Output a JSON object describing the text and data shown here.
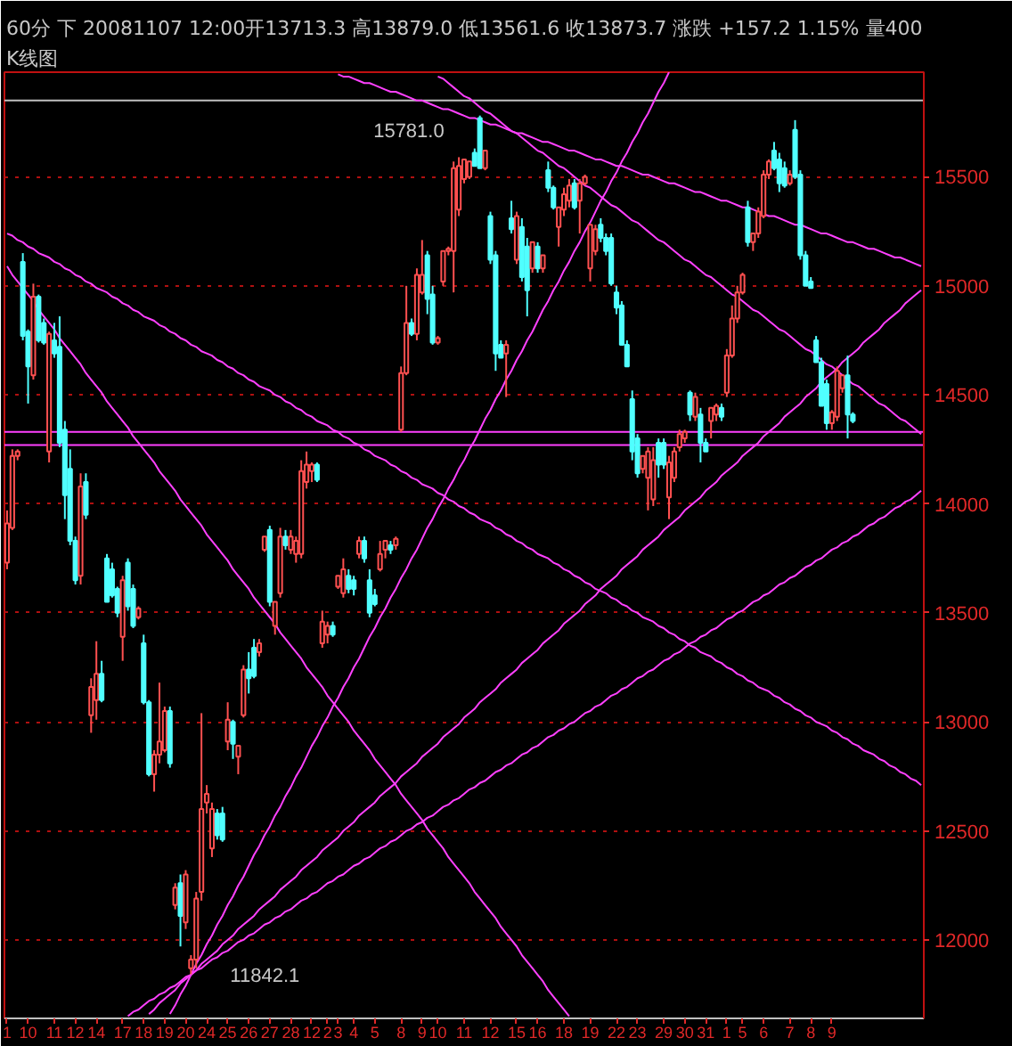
{
  "chart_data": {
    "type": "candlestick",
    "title": "60分 下 20081107 12:00开13713.3 高13879.0 低13561.6 收13873.7 涨跌 +157.2 1.15% 量400",
    "subtitle": "K线图",
    "categories": [
      "1",
      null,
      null,
      null,
      "10",
      null,
      null,
      null,
      null,
      "11",
      null,
      null,
      null,
      "12",
      null,
      null,
      null,
      "14",
      null,
      null,
      null,
      null,
      "17",
      null,
      null,
      null,
      "18",
      null,
      null,
      null,
      "19",
      null,
      null,
      null,
      "20",
      null,
      null,
      null,
      "24",
      null,
      null,
      null,
      "25",
      null,
      null,
      null,
      "26",
      null,
      null,
      null,
      "27",
      null,
      null,
      null,
      "28",
      null,
      null,
      null,
      "12",
      null,
      null,
      "2",
      null,
      "3",
      null,
      null,
      "4",
      null,
      null,
      null,
      "5",
      null,
      null,
      null,
      null,
      "8",
      null,
      null,
      null,
      "9",
      null,
      null,
      "10",
      null,
      null,
      null,
      null,
      "11",
      null,
      null,
      null,
      null,
      "12",
      null,
      null,
      null,
      null,
      "15",
      null,
      null,
      null,
      "16",
      null,
      null,
      null,
      null,
      "18",
      null,
      null,
      null,
      null,
      "19",
      null,
      null,
      null,
      null,
      "22",
      null,
      null,
      null,
      "23",
      null,
      null,
      null,
      null,
      "29",
      null,
      null,
      null,
      "30",
      null,
      null,
      null,
      "31",
      null,
      null,
      null,
      "1",
      null,
      null,
      "5",
      null,
      null,
      null,
      "6",
      null,
      null,
      null,
      null,
      "7",
      null,
      null,
      null,
      "8",
      null,
      null,
      null,
      "9",
      null,
      null,
      null,
      null,
      null,
      null,
      null,
      null,
      null,
      null,
      null,
      null,
      null,
      null,
      null,
      null,
      null
    ],
    "ohlc": [
      [
        13730,
        13970,
        13700,
        13910
      ],
      [
        13890,
        14250,
        13880,
        14220
      ],
      [
        14220,
        14250,
        14200,
        14240
      ],
      [
        15110,
        15150,
        14750,
        14770
      ],
      [
        14790,
        14800,
        14460,
        14630
      ],
      [
        14590,
        15010,
        14570,
        14950
      ],
      [
        14950,
        14960,
        14740,
        14750
      ],
      [
        14830,
        14850,
        14730,
        14740
      ],
      [
        14240,
        14790,
        14190,
        14780
      ],
      [
        14750,
        14830,
        14670,
        14690
      ],
      [
        14720,
        14860,
        14260,
        14280
      ],
      [
        14340,
        14380,
        13930,
        14040
      ],
      [
        14160,
        14250,
        13810,
        13830
      ],
      [
        13830,
        13850,
        13630,
        13650
      ],
      [
        13670,
        14140,
        13630,
        14080
      ],
      [
        14100,
        14140,
        13930,
        13950
      ],
      [
        13030,
        13200,
        12950,
        13160
      ],
      [
        13100,
        13370,
        13010,
        13220
      ],
      [
        13220,
        13280,
        13090,
        13100
      ],
      [
        13750,
        13770,
        13550,
        13550
      ],
      [
        13700,
        13730,
        13570,
        13580
      ],
      [
        13610,
        13620,
        13480,
        13500
      ],
      [
        13390,
        13670,
        13280,
        13650
      ],
      [
        13730,
        13750,
        13510,
        13530
      ],
      [
        13610,
        13630,
        13430,
        13440
      ],
      [
        13480,
        13530,
        13470,
        13520
      ],
      [
        13360,
        13400,
        13080,
        13090
      ],
      [
        13090,
        13100,
        12750,
        12760
      ],
      [
        12760,
        12870,
        12680,
        12850
      ],
      [
        12850,
        13180,
        12810,
        12910
      ],
      [
        12870,
        13070,
        12860,
        13050
      ],
      [
        13050,
        13070,
        12790,
        12810
      ],
      [
        12160,
        12260,
        12140,
        12240
      ],
      [
        12260,
        12300,
        11970,
        12110
      ],
      [
        12080,
        12320,
        12050,
        12300
      ],
      [
        11870,
        11930,
        11842.1,
        11910
      ],
      [
        11910,
        12220,
        11870,
        12190
      ],
      [
        12220,
        13040,
        12180,
        12600
      ],
      [
        12630,
        12710,
        12580,
        12670
      ],
      [
        12420,
        12630,
        12380,
        12600
      ],
      [
        12580,
        12600,
        12460,
        12480
      ],
      [
        12580,
        12610,
        12450,
        12460
      ],
      [
        12910,
        13090,
        12870,
        13010
      ],
      [
        13000,
        13010,
        12830,
        12900
      ],
      [
        12840,
        12890,
        12760,
        12890
      ],
      [
        13030,
        13260,
        13020,
        13240
      ],
      [
        13240,
        13320,
        13130,
        13200
      ],
      [
        13340,
        13380,
        13200,
        13210
      ],
      [
        13320,
        13380,
        13300,
        13360
      ],
      [
        13790,
        13850,
        13780,
        13850
      ],
      [
        13880,
        13900,
        13530,
        13550
      ],
      [
        13440,
        13550,
        13400,
        13550
      ],
      [
        13590,
        13890,
        13570,
        13850
      ],
      [
        13850,
        13880,
        13790,
        13810
      ],
      [
        13790,
        13880,
        13770,
        13850
      ],
      [
        13770,
        13850,
        13730,
        13830
      ],
      [
        13770,
        14200,
        13750,
        14150
      ],
      [
        14100,
        14240,
        14070,
        14180
      ],
      [
        14150,
        14190,
        14100,
        14180
      ],
      [
        14180,
        14190,
        14100,
        14110
      ],
      [
        13360,
        13510,
        13340,
        13460
      ],
      [
        13400,
        13460,
        13360,
        13440
      ],
      [
        13440,
        13460,
        13390,
        13400
      ],
      [
        13620,
        13670,
        13610,
        13670
      ],
      [
        13590,
        13750,
        13570,
        13700
      ],
      [
        13670,
        13700,
        13590,
        13610
      ],
      [
        13650,
        13670,
        13580,
        13610
      ],
      [
        13770,
        13850,
        13750,
        13830
      ],
      [
        13830,
        13850,
        13730,
        13750
      ],
      [
        13650,
        13700,
        13480,
        13500
      ],
      [
        13580,
        13610,
        13530,
        13540
      ],
      [
        13700,
        13830,
        13690,
        13770
      ],
      [
        13790,
        13830,
        13750,
        13830
      ],
      [
        13810,
        13830,
        13770,
        13790
      ],
      [
        13810,
        13850,
        13790,
        13840
      ],
      [
        14340,
        14630,
        14330,
        14600
      ],
      [
        14600,
        15000,
        14590,
        14830
      ],
      [
        14830,
        14850,
        14770,
        14780
      ],
      [
        14780,
        15080,
        14750,
        15050
      ],
      [
        14970,
        15210,
        14960,
        15050
      ],
      [
        15140,
        15160,
        14870,
        14940
      ],
      [
        14960,
        15000,
        14730,
        14740
      ],
      [
        14740,
        14770,
        14730,
        14760
      ],
      [
        15020,
        15160,
        15000,
        15160
      ],
      [
        15160,
        15180,
        15140,
        15170
      ],
      [
        15160,
        15570,
        14970,
        15540
      ],
      [
        15350,
        15590,
        15320,
        15550
      ],
      [
        15490,
        15580,
        15470,
        15580
      ],
      [
        15500,
        15570,
        15490,
        15570
      ],
      [
        15610,
        15630,
        15550,
        15550
      ],
      [
        15770,
        15781.0,
        15540,
        15540
      ],
      [
        15540,
        15620,
        15530,
        15620
      ],
      [
        15320,
        15340,
        15100,
        15120
      ],
      [
        15140,
        15160,
        14610,
        14690
      ],
      [
        14730,
        14750,
        14670,
        14670
      ],
      [
        14690,
        14750,
        14490,
        14730
      ],
      [
        15310,
        15390,
        15240,
        15260
      ],
      [
        15120,
        15340,
        15100,
        15320
      ],
      [
        15270,
        15310,
        15020,
        15040
      ],
      [
        15180,
        15220,
        14860,
        14980
      ],
      [
        15080,
        15200,
        15060,
        15200
      ],
      [
        15180,
        15200,
        15060,
        15080
      ],
      [
        15080,
        15140,
        15060,
        15140
      ],
      [
        15530,
        15570,
        15430,
        15450
      ],
      [
        15450,
        15460,
        15350,
        15360
      ],
      [
        15270,
        15360,
        15180,
        15360
      ],
      [
        15350,
        15450,
        15320,
        15420
      ],
      [
        15390,
        15490,
        15360,
        15460
      ],
      [
        15470,
        15490,
        15350,
        15360
      ],
      [
        15390,
        15490,
        15240,
        15470
      ],
      [
        15470,
        15510,
        15460,
        15500
      ],
      [
        15080,
        15280,
        15020,
        15280
      ],
      [
        15160,
        15280,
        15140,
        15260
      ],
      [
        15280,
        15310,
        15200,
        15220
      ],
      [
        15220,
        15240,
        15140,
        15160
      ],
      [
        15220,
        15240,
        15000,
        15010
      ],
      [
        14970,
        15000,
        14870,
        14900
      ],
      [
        14910,
        14930,
        14730,
        14730
      ],
      [
        14730,
        14750,
        14630,
        14630
      ],
      [
        14480,
        14520,
        14200,
        14240
      ],
      [
        14300,
        14320,
        14120,
        14140
      ],
      [
        14160,
        14220,
        14140,
        14220
      ],
      [
        14120,
        14260,
        13970,
        14240
      ],
      [
        14020,
        14260,
        13990,
        14200
      ],
      [
        14280,
        14300,
        14120,
        14180
      ],
      [
        14280,
        14300,
        14160,
        14180
      ],
      [
        14030,
        14220,
        13930,
        14190
      ],
      [
        14120,
        14260,
        14100,
        14240
      ],
      [
        14260,
        14340,
        14240,
        14320
      ],
      [
        14300,
        14340,
        14280,
        14330
      ],
      [
        14510,
        14520,
        14380,
        14410
      ],
      [
        14400,
        14510,
        14380,
        14490
      ],
      [
        14410,
        14440,
        14190,
        14280
      ],
      [
        14280,
        14300,
        14240,
        14240
      ],
      [
        14380,
        14440,
        14300,
        14440
      ],
      [
        14410,
        14460,
        14380,
        14450
      ],
      [
        14440,
        14460,
        14380,
        14400
      ],
      [
        14510,
        14710,
        14490,
        14680
      ],
      [
        14680,
        14910,
        14670,
        14850
      ],
      [
        14850,
        15000,
        14830,
        14970
      ],
      [
        14970,
        15060,
        14960,
        15050
      ],
      [
        15360,
        15390,
        15180,
        15200
      ],
      [
        15200,
        15240,
        15160,
        15240
      ],
      [
        15240,
        15360,
        15220,
        15340
      ],
      [
        15320,
        15530,
        15310,
        15510
      ],
      [
        15510,
        15580,
        15490,
        15570
      ],
      [
        15620,
        15660,
        15530,
        15540
      ],
      [
        15580,
        15610,
        15430,
        15470
      ],
      [
        15540,
        15570,
        15450,
        15460
      ],
      [
        15470,
        15530,
        15460,
        15510
      ],
      [
        15715,
        15760,
        15490,
        15500
      ],
      [
        15510,
        15530,
        15120,
        15140
      ],
      [
        15140,
        15160,
        15000,
        15000
      ],
      [
        15020,
        15040,
        14990,
        14990
      ],
      [
        14750,
        14770,
        14650,
        14650
      ],
      [
        14650,
        14670,
        14450,
        14450
      ],
      [
        14550,
        14570,
        14340,
        14370
      ],
      [
        14370,
        14430,
        14340,
        14420
      ],
      [
        14400,
        14630,
        14380,
        14610
      ],
      [
        14530,
        14590,
        14510,
        14590
      ],
      [
        14590,
        14680,
        14300,
        14410
      ],
      [
        14410,
        14420,
        14370,
        14380
      ],
      null,
      null,
      null,
      null,
      null,
      null,
      null,
      null,
      null,
      null,
      null,
      null,
      null
    ],
    "colors": [
      "#ff5050",
      "#ff5050",
      "#ff5050",
      "#50ffff",
      "#50ffff",
      "#ff5050",
      "#50ffff",
      "#50ffff",
      "#ff5050",
      "#50ffff",
      "#50ffff",
      "#50ffff",
      "#50ffff",
      "#50ffff",
      "#ff5050",
      "#50ffff",
      "#ff5050",
      "#ff5050",
      "#50ffff",
      "#50ffff",
      "#50ffff",
      "#50ffff",
      "#ff5050",
      "#50ffff",
      "#50ffff",
      "#ff5050",
      "#50ffff",
      "#50ffff",
      "#ff5050",
      "#ff5050",
      "#ff5050",
      "#50ffff",
      "#ff5050",
      "#50ffff",
      "#ff5050",
      "#ff5050",
      "#ff5050",
      "#ff5050",
      "#ff5050",
      "#ff5050",
      "#50ffff",
      "#50ffff",
      "#ff5050",
      "#50ffff",
      "#ff5050",
      "#ff5050",
      "#50ffff",
      "#50ffff",
      "#ff5050",
      "#ff5050",
      "#50ffff",
      "#ff5050",
      "#ff5050",
      "#50ffff",
      "#ff5050",
      "#ff5050",
      "#ff5050",
      "#ff5050",
      "#ff5050",
      "#50ffff",
      "#ff5050",
      "#ff5050",
      "#50ffff",
      "#ff5050",
      "#ff5050",
      "#50ffff",
      "#50ffff",
      "#ff5050",
      "#50ffff",
      "#50ffff",
      "#50ffff",
      "#ff5050",
      "#ff5050",
      "#50ffff",
      "#ff5050",
      "#ff5050",
      "#ff5050",
      "#50ffff",
      "#ff5050",
      "#ff5050",
      "#50ffff",
      "#50ffff",
      "#ff5050",
      "#ff5050",
      "#ff5050",
      "#ff5050",
      "#ff5050",
      "#ff5050",
      "#ff5050",
      "#50ffff",
      "#50ffff",
      "#ff5050",
      "#50ffff",
      "#50ffff",
      "#50ffff",
      "#ff5050",
      "#50ffff",
      "#ff5050",
      "#50ffff",
      "#50ffff",
      "#ff5050",
      "#50ffff",
      "#ff5050",
      "#50ffff",
      "#50ffff",
      "#ff5050",
      "#ff5050",
      "#ff5050",
      "#50ffff",
      "#ff5050",
      "#ff5050",
      "#ff5050",
      "#ff5050",
      "#50ffff",
      "#50ffff",
      "#50ffff",
      "#50ffff",
      "#50ffff",
      "#50ffff",
      "#50ffff",
      "#50ffff",
      "#ff5050",
      "#ff5050",
      "#ff5050",
      "#50ffff",
      "#50ffff",
      "#ff5050",
      "#ff5050",
      "#ff5050",
      "#ff5050",
      "#50ffff",
      "#ff5050",
      "#50ffff",
      "#50ffff",
      "#ff5050",
      "#ff5050",
      "#50ffff",
      "#ff5050",
      "#ff5050",
      "#ff5050",
      "#ff5050",
      "#50ffff",
      "#ff5050",
      "#ff5050",
      "#ff5050",
      "#ff5050",
      "#50ffff",
      "#50ffff",
      "#50ffff",
      "#ff5050",
      "#50ffff",
      "#50ffff",
      "#50ffff",
      "#50ffff",
      "#50ffff",
      "#50ffff",
      "#50ffff",
      "#ff5050",
      "#ff5050",
      "#ff5050",
      "#50ffff",
      "#50ffff",
      null,
      null,
      null,
      null,
      null,
      null,
      null,
      null,
      null,
      null,
      null,
      null,
      null
    ],
    "series": [
      {
        "type": "line",
        "color": "#ff40ff",
        "values": [
          15240,
          15230,
          15210,
          15200,
          15180,
          15170,
          15150,
          15140,
          15130,
          15110,
          15100,
          15080,
          15070,
          15050,
          15040,
          15020,
          15010,
          14990,
          14980,
          14970,
          14950,
          14940,
          14920,
          14910,
          14890,
          14880,
          14860,
          14850,
          14840,
          14820,
          14810,
          14790,
          14780,
          14760,
          14750,
          14730,
          14720,
          14700,
          14690,
          14680,
          14660,
          14650,
          14630,
          14620,
          14600,
          14590,
          14570,
          14560,
          14540,
          14530,
          14520,
          14500,
          14490,
          14470,
          14460,
          14440,
          14430,
          14410,
          14400,
          14380,
          14370,
          14360,
          14340,
          14330,
          14310,
          14300,
          14280,
          14270,
          14250,
          14240,
          14220,
          14210,
          14200,
          14180,
          14170,
          14150,
          14140,
          14120,
          14110,
          14090,
          14080,
          14070,
          14050,
          14040,
          14020,
          14010,
          13990,
          13980,
          13960,
          13950,
          13930,
          13920,
          13910,
          13890,
          13880,
          13860,
          13850,
          13830,
          13820,
          13800,
          13790,
          13770,
          13760,
          13750,
          13730,
          13720,
          13700,
          13690,
          13670,
          13660,
          13640,
          13630,
          13610,
          13600,
          13590,
          13570,
          13560,
          13540,
          13530,
          13510,
          13500,
          13480,
          13470,
          13460,
          13440,
          13430,
          13410,
          13400,
          13380,
          13370,
          13350,
          13340,
          13320,
          13310,
          13300,
          13280,
          13270,
          13250,
          13240,
          13220,
          13210,
          13190,
          13180,
          13160,
          13150,
          13140,
          13120,
          13110,
          13090,
          13080,
          13060,
          13050,
          13030,
          13020,
          13000,
          12990,
          12980,
          12960,
          12950,
          12930,
          12920,
          12900,
          12890,
          12870,
          12860,
          12850,
          12830,
          12820,
          12800,
          12790,
          12770,
          12760,
          12740,
          12730,
          12710
        ]
      },
      {
        "type": "line",
        "color": "#ff40ff",
        "values": [
          15090,
          15050,
          15020,
          14990,
          14960,
          14930,
          14890,
          14860,
          14830,
          14800,
          14760,
          14730,
          14700,
          14670,
          14640,
          14600,
          14570,
          14540,
          14510,
          14470,
          14440,
          14410,
          14380,
          14350,
          14310,
          14280,
          14250,
          14220,
          14190,
          14150,
          14120,
          14090,
          14060,
          14020,
          13990,
          13960,
          13930,
          13900,
          13860,
          13830,
          13800,
          13770,
          13740,
          13700,
          13670,
          13640,
          13610,
          13570,
          13540,
          13510,
          13480,
          13450,
          13410,
          13380,
          13350,
          13320,
          13290,
          13250,
          13220,
          13190,
          13160,
          13120,
          13090,
          13060,
          13030,
          13000,
          12960,
          12930,
          12900,
          12870,
          12830,
          12800,
          12770,
          12740,
          12710,
          12670,
          12640,
          12610,
          12580,
          12550,
          12510,
          12480,
          12450,
          12420,
          12380,
          12350,
          12320,
          12290,
          12260,
          12220,
          12190,
          12160,
          12130,
          12100,
          12060,
          12030,
          12000,
          11970,
          11930,
          11900,
          11870,
          11840,
          11810,
          11770,
          11740,
          11710,
          11680,
          11650,
          null,
          null,
          null,
          null,
          null,
          null,
          null,
          null,
          null,
          null,
          null,
          null,
          null,
          null,
          null,
          null,
          null,
          null,
          null,
          null,
          null,
          null,
          null,
          null,
          null,
          null,
          null,
          null,
          null,
          null,
          null,
          null,
          null,
          null,
          null,
          null,
          null,
          null,
          null,
          null,
          null,
          null,
          null,
          null,
          null,
          null,
          null,
          null,
          null,
          null,
          null,
          null,
          null,
          null,
          null,
          null,
          null,
          null,
          null,
          null,
          null,
          null,
          null,
          null,
          null,
          null,
          null
        ]
      },
      {
        "type": "line",
        "color": "#ff40ff",
        "values": [
          null,
          null,
          null,
          null,
          null,
          null,
          null,
          null,
          null,
          null,
          null,
          null,
          null,
          null,
          null,
          null,
          null,
          null,
          null,
          null,
          null,
          null,
          null,
          null,
          null,
          null,
          null,
          null,
          null,
          null,
          null,
          11660,
          11700,
          11750,
          11790,
          11840,
          11890,
          11930,
          11980,
          12020,
          12070,
          12110,
          12160,
          12200,
          12250,
          12290,
          12340,
          12390,
          12430,
          12480,
          12520,
          12570,
          12610,
          12660,
          12700,
          12750,
          12790,
          12840,
          12890,
          12930,
          12980,
          13020,
          13070,
          13110,
          13160,
          13200,
          13250,
          13290,
          13340,
          13390,
          13430,
          13480,
          13520,
          13570,
          13610,
          13660,
          13700,
          13750,
          13790,
          13840,
          13890,
          13930,
          13980,
          14020,
          14070,
          14110,
          14160,
          14200,
          14250,
          14290,
          14340,
          14390,
          14430,
          14480,
          14520,
          14570,
          14610,
          14660,
          14700,
          14750,
          14790,
          14840,
          14890,
          14930,
          14980,
          15020,
          15070,
          15110,
          15160,
          15200,
          15250,
          15290,
          15340,
          15390,
          15430,
          15480,
          15520,
          15570,
          15610,
          15660,
          15700,
          15750,
          15790,
          15840,
          15890,
          15930,
          15980,
          null,
          null,
          null,
          null,
          null,
          null,
          null,
          null,
          null,
          null,
          null,
          null,
          null,
          null,
          null,
          null,
          null,
          null,
          null,
          null,
          null,
          null,
          null,
          null,
          null,
          null,
          null,
          null,
          null,
          null,
          null,
          null,
          null,
          null,
          null,
          null,
          null,
          null,
          null,
          null,
          null,
          null,
          null,
          null,
          null,
          null,
          null,
          null
        ]
      },
      {
        "type": "line",
        "color": "#ff40ff",
        "values": [
          null,
          null,
          null,
          null,
          null,
          null,
          null,
          null,
          null,
          null,
          null,
          null,
          null,
          null,
          null,
          null,
          null,
          null,
          null,
          null,
          null,
          null,
          null,
          null,
          null,
          null,
          null,
          11660,
          11680,
          11710,
          11730,
          11750,
          11770,
          11800,
          11820,
          11840,
          11860,
          11890,
          11910,
          11930,
          11950,
          11980,
          12000,
          12020,
          12050,
          12070,
          12090,
          12110,
          12140,
          12160,
          12180,
          12200,
          12230,
          12250,
          12270,
          12290,
          12320,
          12340,
          12360,
          12380,
          12410,
          12430,
          12450,
          12470,
          12500,
          12520,
          12540,
          12570,
          12590,
          12610,
          12630,
          12660,
          12680,
          12700,
          12720,
          12750,
          12770,
          12790,
          12810,
          12840,
          12860,
          12880,
          12900,
          12930,
          12950,
          12970,
          12990,
          13020,
          13040,
          13060,
          13090,
          13110,
          13130,
          13150,
          13180,
          13200,
          13220,
          13240,
          13270,
          13290,
          13310,
          13330,
          13360,
          13380,
          13400,
          13420,
          13450,
          13470,
          13490,
          13510,
          13540,
          13560,
          13580,
          13610,
          13630,
          13650,
          13670,
          13700,
          13720,
          13740,
          13760,
          13790,
          13810,
          13830,
          13850,
          13880,
          13900,
          13920,
          13940,
          13970,
          13990,
          14010,
          14030,
          14060,
          14080,
          14100,
          14130,
          14150,
          14170,
          14190,
          14220,
          14240,
          14260,
          14280,
          14310,
          14330,
          14350,
          14370,
          14400,
          14420,
          14440,
          14460,
          14490,
          14510,
          14530,
          14560,
          14580,
          14600,
          14620,
          14650,
          14670,
          14690,
          14710,
          14740,
          14760,
          14780,
          14800,
          14830,
          14850,
          14870,
          14890,
          14920,
          14940,
          14960,
          14980
        ]
      },
      {
        "type": "line",
        "color": "#ff40ff",
        "values": [
          null,
          null,
          null,
          null,
          null,
          null,
          null,
          null,
          null,
          null,
          null,
          null,
          null,
          null,
          null,
          null,
          null,
          null,
          null,
          null,
          null,
          null,
          null,
          11650,
          11670,
          11680,
          11700,
          11720,
          11730,
          11750,
          11760,
          11780,
          11790,
          11810,
          11830,
          11840,
          11860,
          11870,
          11890,
          11910,
          11920,
          11940,
          11950,
          11970,
          11990,
          12000,
          12020,
          12030,
          12050,
          12070,
          12080,
          12100,
          12110,
          12130,
          12140,
          12160,
          12180,
          12190,
          12210,
          12220,
          12240,
          12260,
          12270,
          12290,
          12300,
          12320,
          12340,
          12350,
          12370,
          12380,
          12400,
          12420,
          12430,
          12450,
          12460,
          12480,
          12500,
          12510,
          12530,
          12540,
          12560,
          12570,
          12590,
          12610,
          12620,
          12640,
          12650,
          12670,
          12690,
          12700,
          12720,
          12730,
          12750,
          12770,
          12780,
          12800,
          12810,
          12830,
          12850,
          12860,
          12880,
          12890,
          12910,
          12930,
          12940,
          12960,
          12970,
          12990,
          13000,
          13020,
          13040,
          13050,
          13070,
          13080,
          13100,
          13120,
          13130,
          13150,
          13160,
          13180,
          13200,
          13210,
          13230,
          13240,
          13260,
          13280,
          13290,
          13310,
          13320,
          13340,
          13360,
          13370,
          13390,
          13400,
          13420,
          13430,
          13450,
          13470,
          13480,
          13500,
          13510,
          13530,
          13550,
          13560,
          13580,
          13590,
          13610,
          13630,
          13640,
          13660,
          13670,
          13690,
          13710,
          13720,
          13740,
          13750,
          13770,
          13790,
          13800,
          13820,
          13830,
          13850,
          13860,
          13880,
          13900,
          13910,
          13930,
          13940,
          13960,
          13980,
          13990,
          14010,
          14020,
          14040,
          14060
        ]
      },
      {
        "type": "line",
        "color": "#ff40ff",
        "values": [
          null,
          null,
          null,
          null,
          null,
          null,
          null,
          null,
          null,
          null,
          null,
          null,
          null,
          null,
          null,
          null,
          null,
          null,
          null,
          null,
          null,
          null,
          null,
          null,
          null,
          null,
          null,
          null,
          null,
          null,
          null,
          null,
          null,
          null,
          null,
          null,
          null,
          null,
          null,
          null,
          null,
          null,
          null,
          null,
          null,
          null,
          null,
          null,
          null,
          null,
          null,
          null,
          null,
          null,
          null,
          null,
          null,
          null,
          null,
          null,
          null,
          null,
          null,
          15970,
          15960,
          15960,
          15950,
          15940,
          15930,
          15930,
          15920,
          15910,
          15900,
          15890,
          15890,
          15880,
          15870,
          15860,
          15850,
          15850,
          15840,
          15830,
          15820,
          15810,
          15810,
          15800,
          15790,
          15780,
          15770,
          15770,
          15760,
          15750,
          15740,
          15740,
          15730,
          15720,
          15710,
          15700,
          15700,
          15690,
          15680,
          15670,
          15660,
          15660,
          15650,
          15640,
          15630,
          15620,
          15620,
          15610,
          15600,
          15590,
          15580,
          15580,
          15570,
          15560,
          15550,
          15550,
          15540,
          15530,
          15520,
          15510,
          15510,
          15500,
          15490,
          15480,
          15470,
          15470,
          15460,
          15450,
          15440,
          15430,
          15430,
          15420,
          15410,
          15400,
          15390,
          15390,
          15380,
          15370,
          15360,
          15360,
          15350,
          15340,
          15330,
          15320,
          15320,
          15310,
          15300,
          15290,
          15280,
          15280,
          15270,
          15260,
          15250,
          15240,
          15240,
          15230,
          15220,
          15210,
          15200,
          15200,
          15190,
          15180,
          15170,
          15170,
          15160,
          15150,
          15140,
          15130,
          15130,
          15120,
          15110,
          15100,
          15090
        ]
      },
      {
        "type": "line",
        "color": "#ff40ff",
        "values": [
          null,
          null,
          null,
          null,
          null,
          null,
          null,
          null,
          null,
          null,
          null,
          null,
          null,
          null,
          null,
          null,
          null,
          null,
          null,
          null,
          null,
          null,
          null,
          null,
          null,
          null,
          null,
          null,
          null,
          null,
          null,
          null,
          null,
          null,
          null,
          null,
          null,
          null,
          null,
          null,
          null,
          null,
          null,
          null,
          null,
          null,
          null,
          null,
          null,
          null,
          null,
          null,
          null,
          null,
          null,
          null,
          null,
          null,
          null,
          null,
          null,
          null,
          null,
          null,
          null,
          null,
          null,
          null,
          null,
          null,
          null,
          null,
          null,
          null,
          null,
          null,
          null,
          null,
          null,
          null,
          null,
          null,
          15960,
          15950,
          15930,
          15910,
          15890,
          15870,
          15860,
          15840,
          15820,
          15800,
          15790,
          15770,
          15750,
          15730,
          15710,
          15700,
          15680,
          15660,
          15640,
          15620,
          15610,
          15590,
          15570,
          15550,
          15540,
          15520,
          15500,
          15480,
          15460,
          15450,
          15430,
          15410,
          15390,
          15370,
          15360,
          15340,
          15320,
          15300,
          15290,
          15270,
          15250,
          15230,
          15210,
          15200,
          15180,
          15160,
          15140,
          15120,
          15110,
          15090,
          15070,
          15050,
          15040,
          15020,
          15000,
          14980,
          14960,
          14950,
          14930,
          14910,
          14890,
          14880,
          14860,
          14840,
          14820,
          14800,
          14790,
          14770,
          14750,
          14730,
          14710,
          14700,
          14680,
          14660,
          14640,
          14630,
          14610,
          14590,
          14570,
          14550,
          14540,
          14520,
          14500,
          14480,
          14460,
          14450,
          14430,
          14410,
          14390,
          14380,
          14360,
          14340,
          14320
        ]
      }
    ],
    "ref_lines": [
      {
        "axis": "y",
        "value": 15850,
        "color": "#c0c0c0"
      },
      {
        "axis": "y",
        "value": 14330,
        "color": "#ff40ff"
      },
      {
        "axis": "y",
        "value": 14270,
        "color": "#ff40ff"
      }
    ],
    "annotations": [
      "15781.0",
      "11842.1"
    ],
    "ylim": [
      11640,
      15980
    ],
    "yticks": [
      12000,
      12500,
      13000,
      13500,
      14000,
      14500,
      15000,
      15500
    ],
    "grid": "y"
  }
}
